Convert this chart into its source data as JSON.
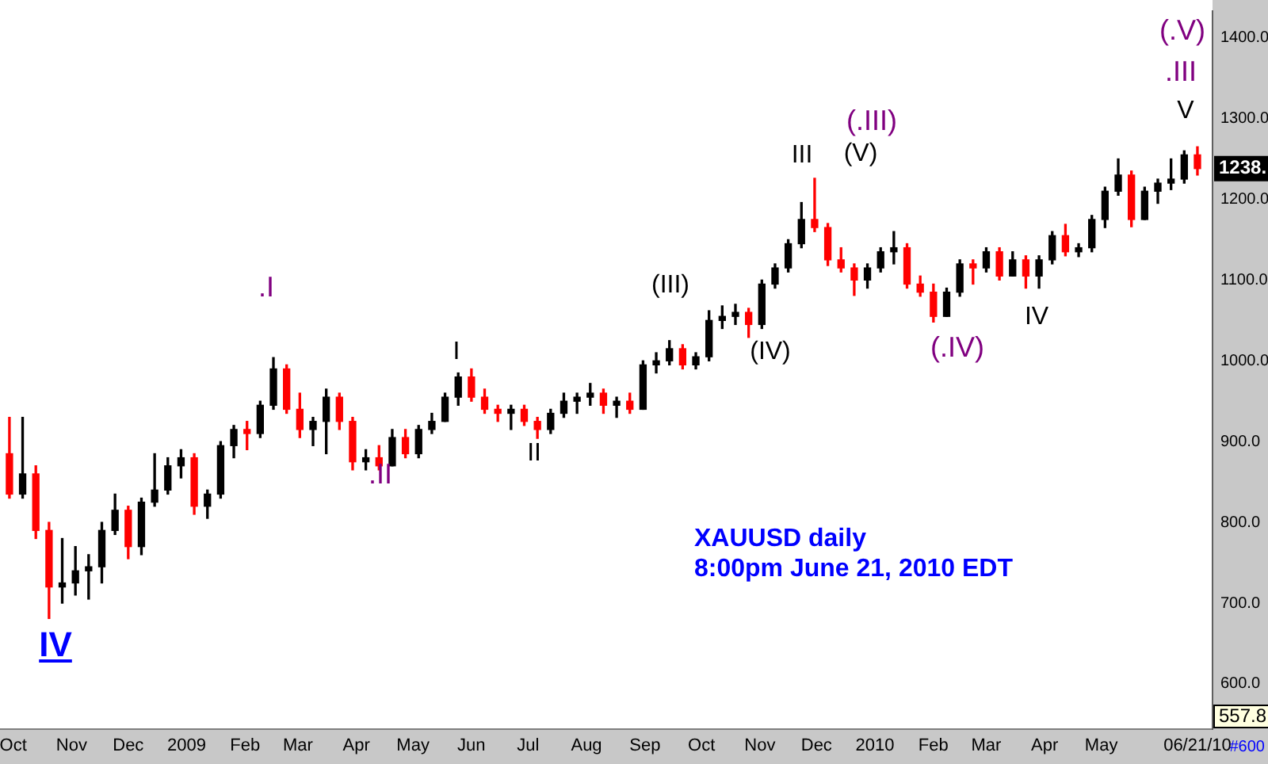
{
  "chart_data": {
    "type": "candlestick",
    "x": [
      "2008-09-29",
      "2008-10-06",
      "2008-10-13",
      "2008-10-20",
      "2008-10-27",
      "2008-11-03",
      "2008-11-10",
      "2008-11-17",
      "2008-11-24",
      "2008-12-01",
      "2008-12-08",
      "2008-12-15",
      "2008-12-22",
      "2008-12-29",
      "2009-01-05",
      "2009-01-12",
      "2009-01-19",
      "2009-01-26",
      "2009-02-02",
      "2009-02-09",
      "2009-02-16",
      "2009-02-23",
      "2009-03-02",
      "2009-03-09",
      "2009-03-16",
      "2009-03-23",
      "2009-03-30",
      "2009-04-06",
      "2009-04-13",
      "2009-04-20",
      "2009-04-27",
      "2009-05-04",
      "2009-05-11",
      "2009-05-18",
      "2009-05-25",
      "2009-06-01",
      "2009-06-08",
      "2009-06-15",
      "2009-06-22",
      "2009-06-29",
      "2009-07-06",
      "2009-07-13",
      "2009-07-20",
      "2009-07-27",
      "2009-08-03",
      "2009-08-10",
      "2009-08-17",
      "2009-08-24",
      "2009-08-31",
      "2009-09-07",
      "2009-09-14",
      "2009-09-21",
      "2009-09-28",
      "2009-10-05",
      "2009-10-12",
      "2009-10-19",
      "2009-10-26",
      "2009-11-02",
      "2009-11-09",
      "2009-11-16",
      "2009-11-23",
      "2009-11-30",
      "2009-12-07",
      "2009-12-14",
      "2009-12-21",
      "2009-12-28",
      "2010-01-04",
      "2010-01-11",
      "2010-01-18",
      "2010-01-25",
      "2010-02-01",
      "2010-02-08",
      "2010-02-15",
      "2010-02-22",
      "2010-03-01",
      "2010-03-08",
      "2010-03-15",
      "2010-03-22",
      "2010-03-29",
      "2010-04-05",
      "2010-04-12",
      "2010-04-19",
      "2010-04-26",
      "2010-05-03",
      "2010-05-10",
      "2010-05-17",
      "2010-05-24",
      "2010-05-31",
      "2010-06-07",
      "2010-06-14",
      "2010-06-21"
    ],
    "ohlc": [
      [
        885,
        930,
        830,
        835
      ],
      [
        835,
        930,
        830,
        860
      ],
      [
        860,
        870,
        780,
        790
      ],
      [
        790,
        800,
        681,
        720
      ],
      [
        720,
        780,
        700,
        725
      ],
      [
        725,
        770,
        710,
        740
      ],
      [
        740,
        760,
        705,
        745
      ],
      [
        745,
        800,
        725,
        790
      ],
      [
        790,
        835,
        785,
        815
      ],
      [
        815,
        820,
        755,
        770
      ],
      [
        770,
        830,
        760,
        825
      ],
      [
        825,
        885,
        820,
        840
      ],
      [
        840,
        880,
        835,
        870
      ],
      [
        870,
        890,
        855,
        880
      ],
      [
        880,
        885,
        810,
        820
      ],
      [
        820,
        840,
        805,
        835
      ],
      [
        835,
        900,
        830,
        895
      ],
      [
        895,
        920,
        880,
        915
      ],
      [
        915,
        925,
        890,
        910
      ],
      [
        910,
        950,
        905,
        945
      ],
      [
        945,
        1004,
        940,
        990
      ],
      [
        990,
        995,
        935,
        940
      ],
      [
        940,
        960,
        905,
        915
      ],
      [
        915,
        930,
        895,
        925
      ],
      [
        925,
        965,
        885,
        955
      ],
      [
        955,
        960,
        915,
        925
      ],
      [
        925,
        930,
        865,
        875
      ],
      [
        875,
        890,
        865,
        880
      ],
      [
        880,
        895,
        865,
        870
      ],
      [
        870,
        915,
        870,
        905
      ],
      [
        905,
        915,
        880,
        885
      ],
      [
        885,
        920,
        880,
        915
      ],
      [
        915,
        935,
        910,
        925
      ],
      [
        925,
        960,
        925,
        955
      ],
      [
        955,
        985,
        945,
        980
      ],
      [
        980,
        990,
        950,
        955
      ],
      [
        955,
        965,
        935,
        940
      ],
      [
        940,
        945,
        925,
        935
      ],
      [
        935,
        945,
        915,
        940
      ],
      [
        940,
        945,
        920,
        925
      ],
      [
        925,
        930,
        904,
        915
      ],
      [
        915,
        940,
        910,
        935
      ],
      [
        935,
        960,
        930,
        950
      ],
      [
        950,
        960,
        935,
        955
      ],
      [
        955,
        972,
        945,
        960
      ],
      [
        960,
        965,
        935,
        945
      ],
      [
        945,
        955,
        930,
        950
      ],
      [
        950,
        960,
        935,
        940
      ],
      [
        940,
        1000,
        940,
        995
      ],
      [
        995,
        1010,
        985,
        1000
      ],
      [
        1000,
        1025,
        995,
        1015
      ],
      [
        1015,
        1020,
        990,
        995
      ],
      [
        995,
        1010,
        990,
        1005
      ],
      [
        1005,
        1062,
        1000,
        1050
      ],
      [
        1050,
        1068,
        1040,
        1055
      ],
      [
        1055,
        1070,
        1045,
        1060
      ],
      [
        1060,
        1065,
        1029,
        1045
      ],
      [
        1045,
        1100,
        1040,
        1095
      ],
      [
        1095,
        1120,
        1090,
        1115
      ],
      [
        1115,
        1150,
        1110,
        1145
      ],
      [
        1145,
        1196,
        1140,
        1175
      ],
      [
        1175,
        1226,
        1160,
        1165
      ],
      [
        1165,
        1170,
        1118,
        1125
      ],
      [
        1125,
        1140,
        1110,
        1115
      ],
      [
        1115,
        1120,
        1081,
        1100
      ],
      [
        1100,
        1120,
        1090,
        1115
      ],
      [
        1115,
        1140,
        1110,
        1135
      ],
      [
        1135,
        1160,
        1120,
        1140
      ],
      [
        1140,
        1145,
        1090,
        1095
      ],
      [
        1095,
        1105,
        1080,
        1085
      ],
      [
        1085,
        1095,
        1048,
        1055
      ],
      [
        1055,
        1090,
        1055,
        1085
      ],
      [
        1085,
        1125,
        1080,
        1120
      ],
      [
        1120,
        1125,
        1095,
        1115
      ],
      [
        1115,
        1140,
        1110,
        1135
      ],
      [
        1135,
        1140,
        1100,
        1105
      ],
      [
        1105,
        1135,
        1105,
        1125
      ],
      [
        1125,
        1130,
        1090,
        1105
      ],
      [
        1105,
        1130,
        1090,
        1125
      ],
      [
        1125,
        1160,
        1120,
        1155
      ],
      [
        1155,
        1169,
        1130,
        1135
      ],
      [
        1135,
        1145,
        1129,
        1140
      ],
      [
        1140,
        1180,
        1135,
        1175
      ],
      [
        1175,
        1215,
        1165,
        1210
      ],
      [
        1210,
        1250,
        1205,
        1230
      ],
      [
        1230,
        1235,
        1166,
        1175
      ],
      [
        1175,
        1215,
        1175,
        1210
      ],
      [
        1210,
        1225,
        1195,
        1220
      ],
      [
        1220,
        1250,
        1212,
        1225
      ],
      [
        1225,
        1260,
        1220,
        1255
      ],
      [
        1255,
        1265,
        1230,
        1238
      ]
    ],
    "colors": [
      "#ff0000",
      "#000000",
      "#ff0000",
      "#ff0000",
      "#000000",
      "#000000",
      "#000000",
      "#000000",
      "#000000",
      "#ff0000",
      "#000000",
      "#000000",
      "#000000",
      "#000000",
      "#ff0000",
      "#000000",
      "#000000",
      "#000000",
      "#ff0000",
      "#000000",
      "#000000",
      "#ff0000",
      "#ff0000",
      "#000000",
      "#000000",
      "#ff0000",
      "#ff0000",
      "#000000",
      "#ff0000",
      "#000000",
      "#ff0000",
      "#000000",
      "#000000",
      "#000000",
      "#000000",
      "#ff0000",
      "#ff0000",
      "#ff0000",
      "#000000",
      "#ff0000",
      "#ff0000",
      "#000000",
      "#000000",
      "#000000",
      "#000000",
      "#ff0000",
      "#000000",
      "#ff0000",
      "#000000",
      "#000000",
      "#000000",
      "#ff0000",
      "#000000",
      "#000000",
      "#000000",
      "#000000",
      "#ff0000",
      "#000000",
      "#000000",
      "#000000",
      "#000000",
      "#ff0000",
      "#ff0000",
      "#ff0000",
      "#ff0000",
      "#000000",
      "#000000",
      "#000000",
      "#ff0000",
      "#ff0000",
      "#ff0000",
      "#000000",
      "#000000",
      "#ff0000",
      "#000000",
      "#ff0000",
      "#000000",
      "#ff0000",
      "#000000",
      "#000000",
      "#ff0000",
      "#000000",
      "#000000",
      "#000000",
      "#000000",
      "#ff0000",
      "#000000",
      "#000000",
      "#000000",
      "#000000",
      "#ff0000"
    ],
    "xlim": [
      "2008-09-24",
      "2010-06-29"
    ],
    "xticks": [
      {
        "value": "2008-10-01",
        "label": "Oct"
      },
      {
        "value": "2008-11-01",
        "label": "Nov"
      },
      {
        "value": "2008-12-01",
        "label": "Dec"
      },
      {
        "value": "2009-01-01",
        "label": "2009"
      },
      {
        "value": "2009-02-01",
        "label": "Feb"
      },
      {
        "value": "2009-03-01",
        "label": "Mar"
      },
      {
        "value": "2009-04-01",
        "label": "Apr"
      },
      {
        "value": "2009-05-01",
        "label": "May"
      },
      {
        "value": "2009-06-01",
        "label": "Jun"
      },
      {
        "value": "2009-07-01",
        "label": "Jul"
      },
      {
        "value": "2009-08-01",
        "label": "Aug"
      },
      {
        "value": "2009-09-01",
        "label": "Sep"
      },
      {
        "value": "2009-10-01",
        "label": "Oct"
      },
      {
        "value": "2009-11-01",
        "label": "Nov"
      },
      {
        "value": "2009-12-01",
        "label": "Dec"
      },
      {
        "value": "2010-01-01",
        "label": "2010"
      },
      {
        "value": "2010-02-01",
        "label": "Feb"
      },
      {
        "value": "2010-03-01",
        "label": "Mar"
      },
      {
        "value": "2010-04-01",
        "label": "Apr"
      },
      {
        "value": "2010-05-01",
        "label": "May"
      },
      {
        "value": "2010-06-21",
        "label": "06/21/10"
      }
    ],
    "ylim": [
      544,
      1433
    ],
    "yticks": [
      {
        "value": 600,
        "label": "600.0"
      },
      {
        "value": 700,
        "label": "700.0"
      },
      {
        "value": 800,
        "label": "800.0"
      },
      {
        "value": 900,
        "label": "900.0"
      },
      {
        "value": 1000,
        "label": "1000.0"
      },
      {
        "value": 1100,
        "label": "1100.0"
      },
      {
        "value": 1200,
        "label": "1200.0"
      },
      {
        "value": 1300,
        "label": "1300.0"
      },
      {
        "value": 1400,
        "label": "1400.0"
      }
    ],
    "annotations": [
      "IV",
      ".I",
      ".II",
      "I",
      "II",
      "(III)",
      "(IV)",
      "III",
      "(V)",
      "(.III)",
      "(.IV)",
      "IV",
      "V",
      ".III",
      "(.V)",
      {
        "text": "1238.",
        "x": "2010-06-21",
        "y": 1238
      },
      "XAUUSD daily",
      "8:00pm June 21, 2010 EDT",
      "557.8",
      "#600"
    ]
  }
}
